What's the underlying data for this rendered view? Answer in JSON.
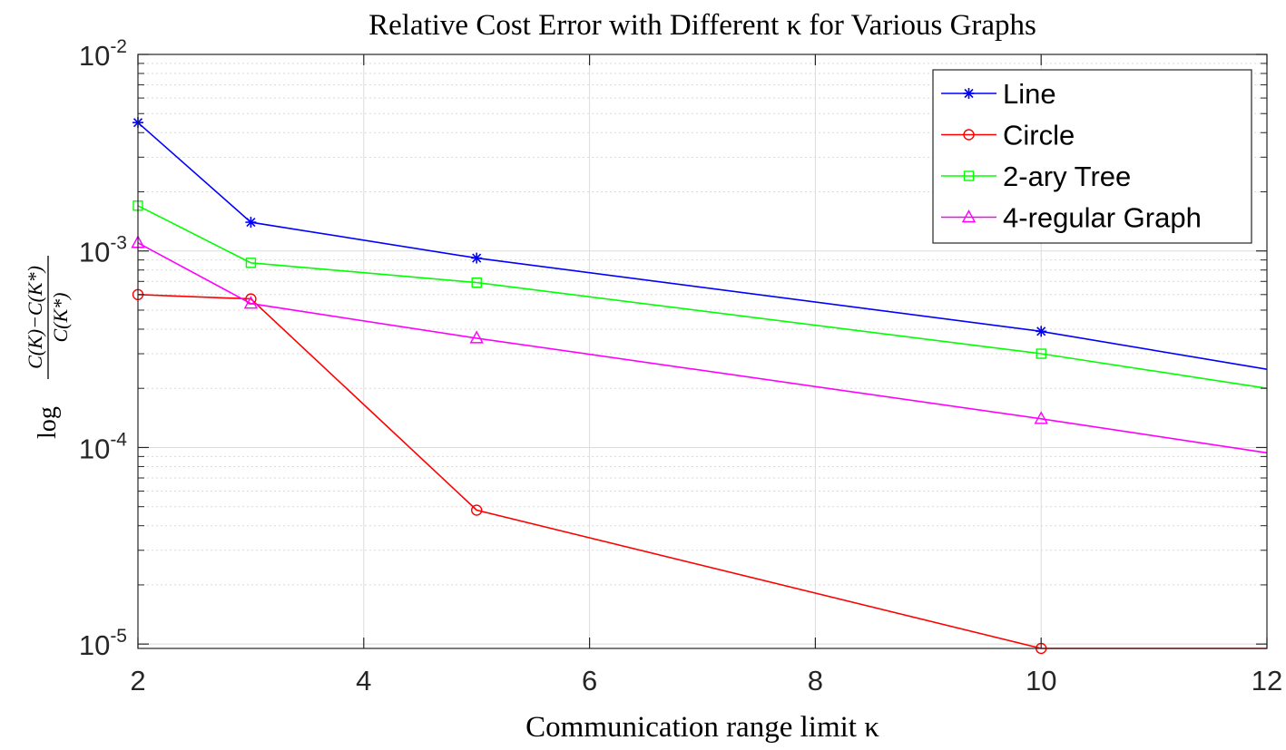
{
  "chart_data": {
    "type": "line",
    "title": "Relative Cost Error with Different κ for Various Graphs",
    "xlabel": "Communication range limit κ",
    "ylabel": {
      "prefix": "log",
      "numerator": "C(K)−C(K*)",
      "denominator": "C(K*)"
    },
    "xlim": [
      2,
      12
    ],
    "ylim": [
      9.5e-06,
      0.01
    ],
    "yscale": "log",
    "grid": true,
    "legend_position": "top-right",
    "x_ticks": [
      2,
      4,
      6,
      8,
      10,
      12
    ],
    "x_tick_labels": [
      "2",
      "4",
      "6",
      "8",
      "10",
      "12"
    ],
    "y_ticks": [
      1e-05,
      0.0001,
      0.001,
      0.01
    ],
    "y_tick_labels": [
      {
        "base": "10",
        "exp": "-5"
      },
      {
        "base": "10",
        "exp": "-4"
      },
      {
        "base": "10",
        "exp": "-3"
      },
      {
        "base": "10",
        "exp": "-2"
      }
    ],
    "x": [
      2,
      3,
      5,
      10,
      12
    ],
    "series": [
      {
        "name": "Line",
        "color": "#0000ff",
        "marker": "asterisk",
        "values": [
          0.0045,
          0.0014,
          0.00092,
          0.00039,
          0.00025
        ]
      },
      {
        "name": "Circle",
        "color": "#ff0000",
        "marker": "circle",
        "values": [
          0.0006,
          0.00057,
          4.8e-05,
          9.5e-06,
          9.5e-06
        ]
      },
      {
        "name": "2-ary Tree",
        "color": "#00ff00",
        "marker": "square",
        "values": [
          0.0017,
          0.00087,
          0.00069,
          0.0003,
          0.0002
        ]
      },
      {
        "name": "4-regular Graph",
        "color": "#ff00ff",
        "marker": "triangle",
        "values": [
          0.0011,
          0.00054,
          0.00036,
          0.00014,
          9.4e-05
        ]
      }
    ]
  }
}
